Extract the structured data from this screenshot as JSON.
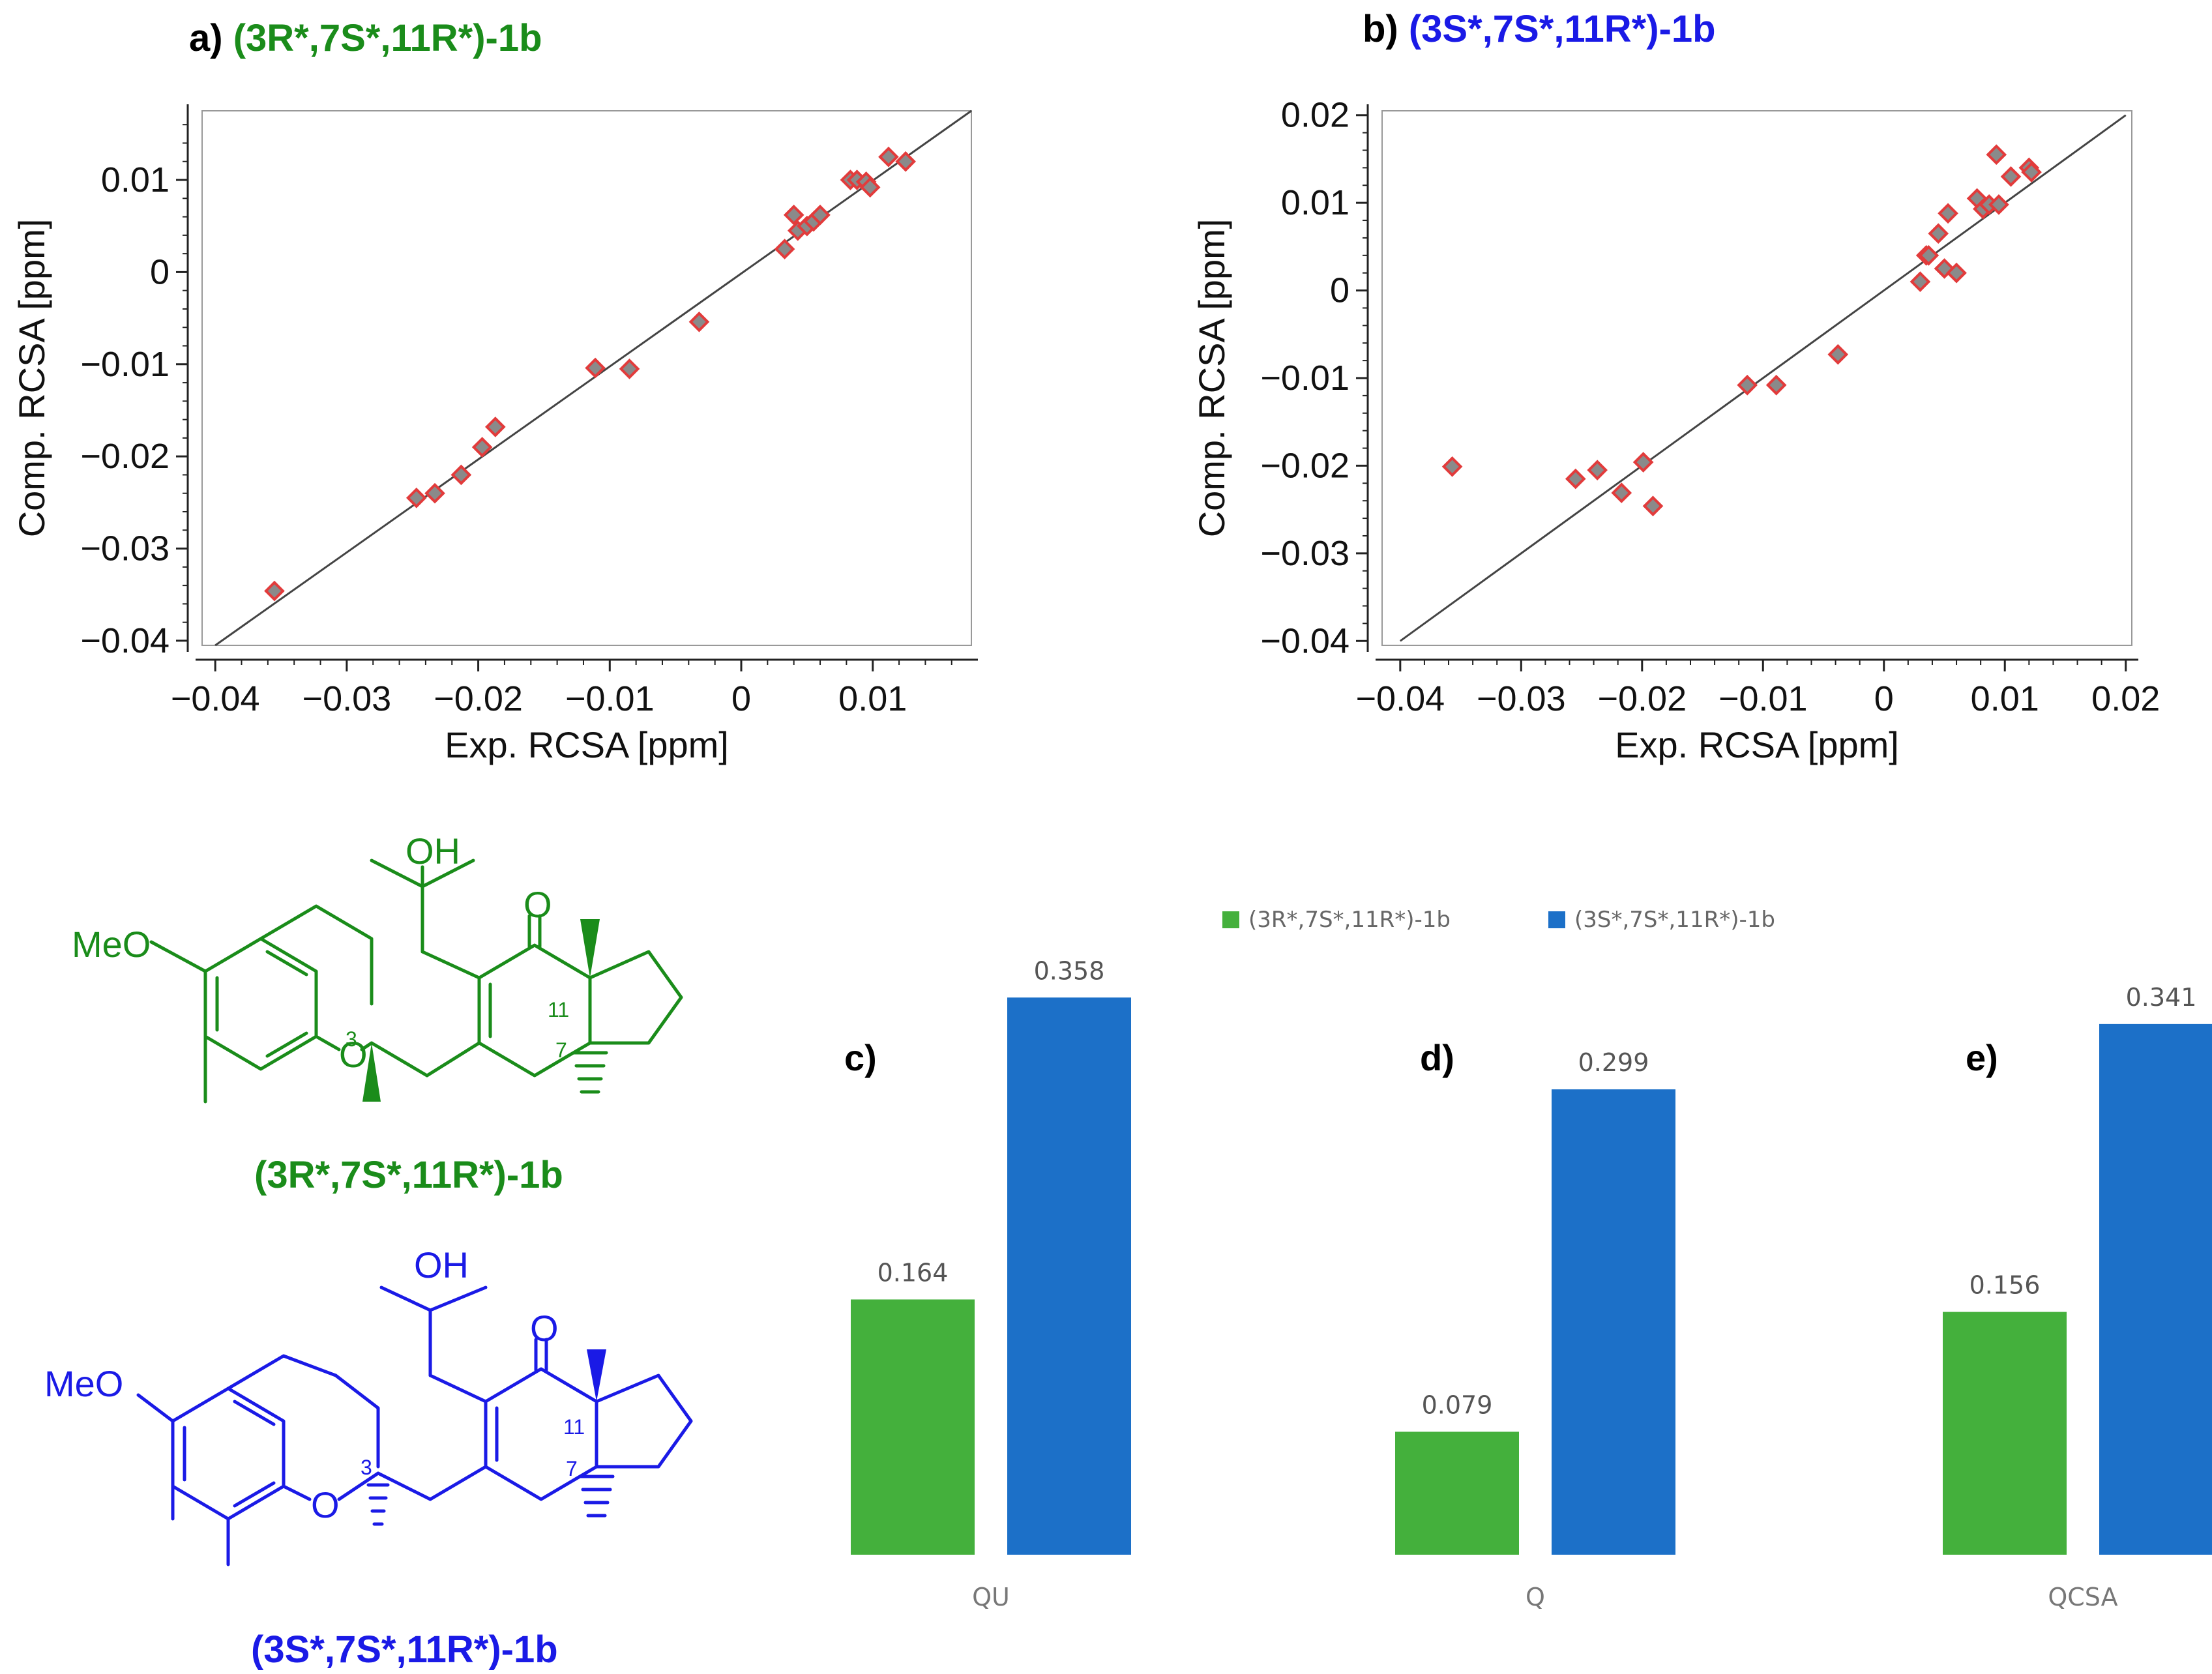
{
  "colors": {
    "green": "#1a8c1a",
    "blue": "#1a1ae6",
    "bar_green": "#44b03c",
    "bar_blue": "#1c70c8",
    "point_fill": "#8a8a8a",
    "point_stroke": "#e23b3b"
  },
  "panel_a": {
    "prefix": "a) ",
    "label": "(3R*,7S*,11R*)-1b"
  },
  "panel_b": {
    "prefix": "b) ",
    "label": "(3S*,7S*,11R*)-1b"
  },
  "chart_data": [
    {
      "type": "scatter",
      "id": "a",
      "title": "a) (3R*,7S*,11R*)-1b",
      "xlabel": "Exp. RCSA [ppm]",
      "ylabel": "Comp. RCSA [ppm]",
      "xlim": [
        -0.041,
        0.0175
      ],
      "ylim": [
        -0.0405,
        0.0175
      ],
      "xticks": [
        -0.04,
        -0.03,
        -0.02,
        -0.01,
        0,
        0.01
      ],
      "xtick_labels": [
        "−0.04",
        "−0.03",
        "−0.02",
        "−0.01",
        "0",
        "0.01"
      ],
      "yticks": [
        -0.04,
        -0.03,
        -0.02,
        -0.01,
        0,
        0.01
      ],
      "ytick_labels": [
        "−0.04",
        "−0.03",
        "−0.02",
        "−0.01",
        "0",
        "0.01"
      ],
      "fit_line": {
        "x": [
          -0.04,
          0.0175
        ],
        "y": [
          -0.0405,
          0.0175
        ]
      },
      "points": [
        [
          -0.0355,
          -0.0346
        ],
        [
          -0.0247,
          -0.0245
        ],
        [
          -0.0233,
          -0.024
        ],
        [
          -0.0213,
          -0.022
        ],
        [
          -0.0197,
          -0.019
        ],
        [
          -0.0187,
          -0.0168
        ],
        [
          -0.0111,
          -0.0104
        ],
        [
          -0.0085,
          -0.0105
        ],
        [
          -0.0032,
          -0.0054
        ],
        [
          0.0033,
          0.0025
        ],
        [
          0.004,
          0.0062
        ],
        [
          0.0043,
          0.0045
        ],
        [
          0.005,
          0.005
        ],
        [
          0.0055,
          0.0055
        ],
        [
          0.006,
          0.0062
        ],
        [
          0.0083,
          0.01
        ],
        [
          0.0088,
          0.01
        ],
        [
          0.0095,
          0.0098
        ],
        [
          0.0098,
          0.0092
        ],
        [
          0.0112,
          0.0125
        ],
        [
          0.0125,
          0.012
        ]
      ]
    },
    {
      "type": "scatter",
      "id": "b",
      "title": "b) (3S*,7S*,11R*)-1b",
      "xlabel": "Exp. RCSA [ppm]",
      "ylabel": "Comp. RCSA [ppm]",
      "xlim": [
        -0.0415,
        0.0205
      ],
      "ylim": [
        -0.0405,
        0.0205
      ],
      "xticks": [
        -0.04,
        -0.03,
        -0.02,
        -0.01,
        0,
        0.01,
        0.02
      ],
      "xtick_labels": [
        "−0.04",
        "−0.03",
        "−0.02",
        "−0.01",
        "0",
        "0.01",
        "0.02"
      ],
      "yticks": [
        -0.04,
        -0.03,
        -0.02,
        -0.01,
        0,
        0.01,
        0.02
      ],
      "ytick_labels": [
        "−0.04",
        "−0.03",
        "−0.02",
        "−0.01",
        "0",
        "0.01",
        "0.02"
      ],
      "fit_line": {
        "x": [
          -0.04,
          0.02
        ],
        "y": [
          -0.04,
          0.02
        ]
      },
      "points": [
        [
          -0.0357,
          -0.0201
        ],
        [
          -0.0255,
          -0.0215
        ],
        [
          -0.0237,
          -0.0205
        ],
        [
          -0.0217,
          -0.0231
        ],
        [
          -0.0199,
          -0.0196
        ],
        [
          -0.0191,
          -0.0246
        ],
        [
          -0.0113,
          -0.0108
        ],
        [
          -0.0089,
          -0.0108
        ],
        [
          -0.0038,
          -0.0073
        ],
        [
          0.003,
          0.001
        ],
        [
          0.0035,
          0.004
        ],
        [
          0.0037,
          0.004
        ],
        [
          0.0045,
          0.0065
        ],
        [
          0.005,
          0.0025
        ],
        [
          0.0053,
          0.0088
        ],
        [
          0.006,
          0.002
        ],
        [
          0.0077,
          0.0105
        ],
        [
          0.0082,
          0.0093
        ],
        [
          0.0087,
          0.0098
        ],
        [
          0.0093,
          0.0155
        ],
        [
          0.0095,
          0.0098
        ],
        [
          0.0105,
          0.013
        ],
        [
          0.012,
          0.014
        ],
        [
          0.0122,
          0.0135
        ]
      ]
    },
    {
      "type": "bar",
      "id": "cde",
      "legend": [
        "(3R*,7S*,11R*)-1b",
        "(3S*,7S*,11R*)-1b"
      ],
      "groups": [
        {
          "letter": "c)",
          "category": "QU",
          "values": [
            0.164,
            0.358
          ],
          "labels": [
            "0.164",
            "0.358"
          ]
        },
        {
          "letter": "d)",
          "category": "Q",
          "values": [
            0.079,
            0.299
          ],
          "labels": [
            "0.079",
            "0.299"
          ]
        },
        {
          "letter": "e)",
          "category": "QCSA",
          "values": [
            0.156,
            0.341
          ],
          "labels": [
            "0.156",
            "0.341"
          ]
        }
      ],
      "ylim": [
        0,
        0.4
      ]
    }
  ],
  "molecules": {
    "top": {
      "meo": "MeO",
      "oh": "OH",
      "o_ketone": "O",
      "o_ring": "O",
      "n3": "3",
      "n7": "7",
      "n11": "11",
      "name": "(3R*,7S*,11R*)-1b"
    },
    "bottom": {
      "meo": "MeO",
      "oh": "OH",
      "o_ketone": "O",
      "o_ring": "O",
      "n3": "3",
      "n7": "7",
      "n11": "11",
      "name": "(3S*,7S*,11R*)-1b"
    }
  }
}
